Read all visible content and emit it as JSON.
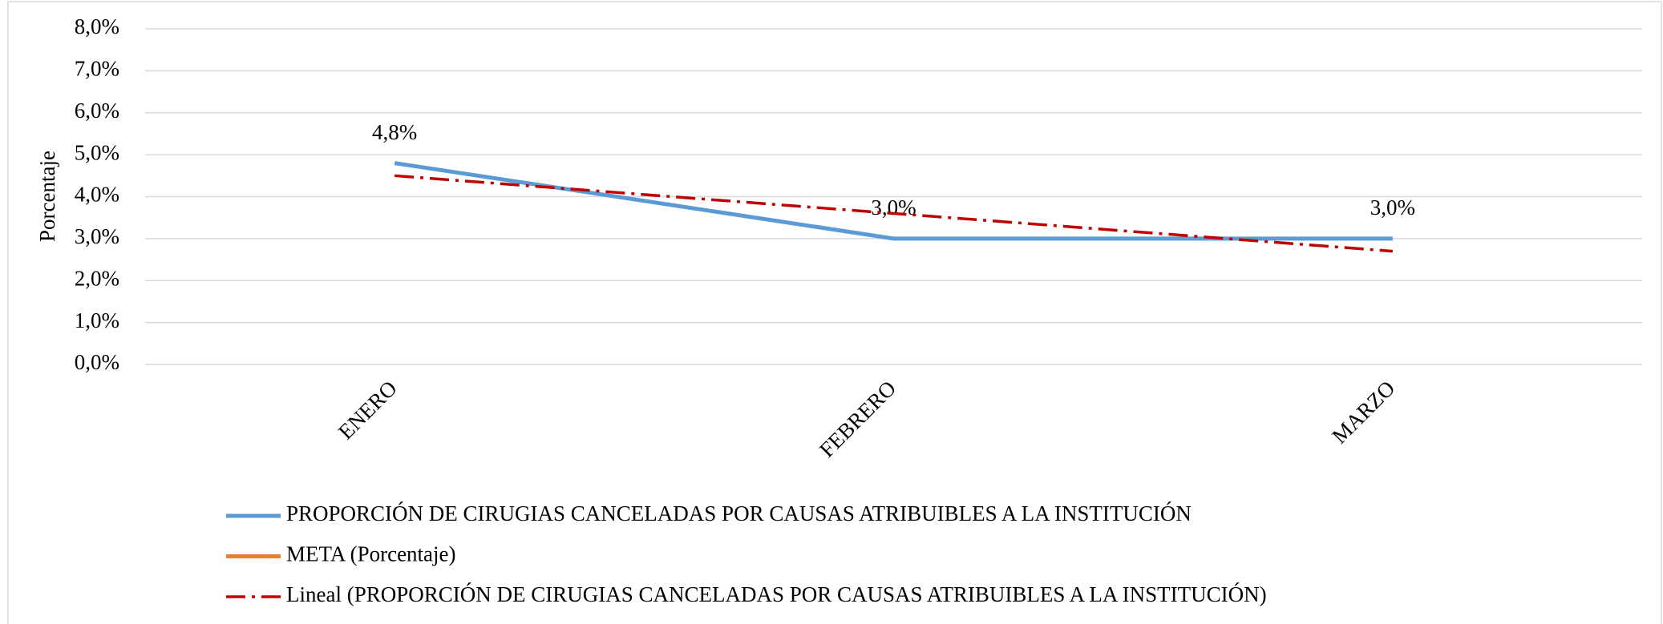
{
  "chart_data": {
    "type": "line",
    "y_label": "Porcentaje",
    "categories": [
      "ENERO",
      "FEBRERO",
      "MARZO"
    ],
    "series": [
      {
        "name": "PROPORCIÓN DE CIRUGIAS CANCELADAS POR CAUSAS ATRIBUIBLES A LA INSTITUCIÓN",
        "color": "#5b9bd5",
        "values": [
          4.8,
          3.0,
          3.0
        ],
        "value_labels": [
          "4,8%",
          "3,0%",
          "3,0%"
        ]
      },
      {
        "name": "META (Porcentaje)",
        "color": "#ed7d31",
        "values": [
          null,
          null,
          null
        ]
      },
      {
        "name": "Lineal (PROPORCIÓN DE CIRUGIAS CANCELADAS POR CAUSAS ATRIBUIBLES A LA INSTITUCIÓN)",
        "color": "#c00000",
        "dash": true,
        "values": [
          4.5,
          3.6,
          2.7
        ]
      }
    ],
    "ylim": [
      0,
      8
    ],
    "yticks": [
      {
        "value": 0,
        "label": "0,0%"
      },
      {
        "value": 1,
        "label": "1,0%"
      },
      {
        "value": 2,
        "label": "2,0%"
      },
      {
        "value": 3,
        "label": "3,0%"
      },
      {
        "value": 4,
        "label": "4,0%"
      },
      {
        "value": 5,
        "label": "5,0%"
      },
      {
        "value": 6,
        "label": "6,0%"
      },
      {
        "value": 7,
        "label": "7,0%"
      },
      {
        "value": 8,
        "label": "8,0%"
      }
    ],
    "grid": true
  }
}
